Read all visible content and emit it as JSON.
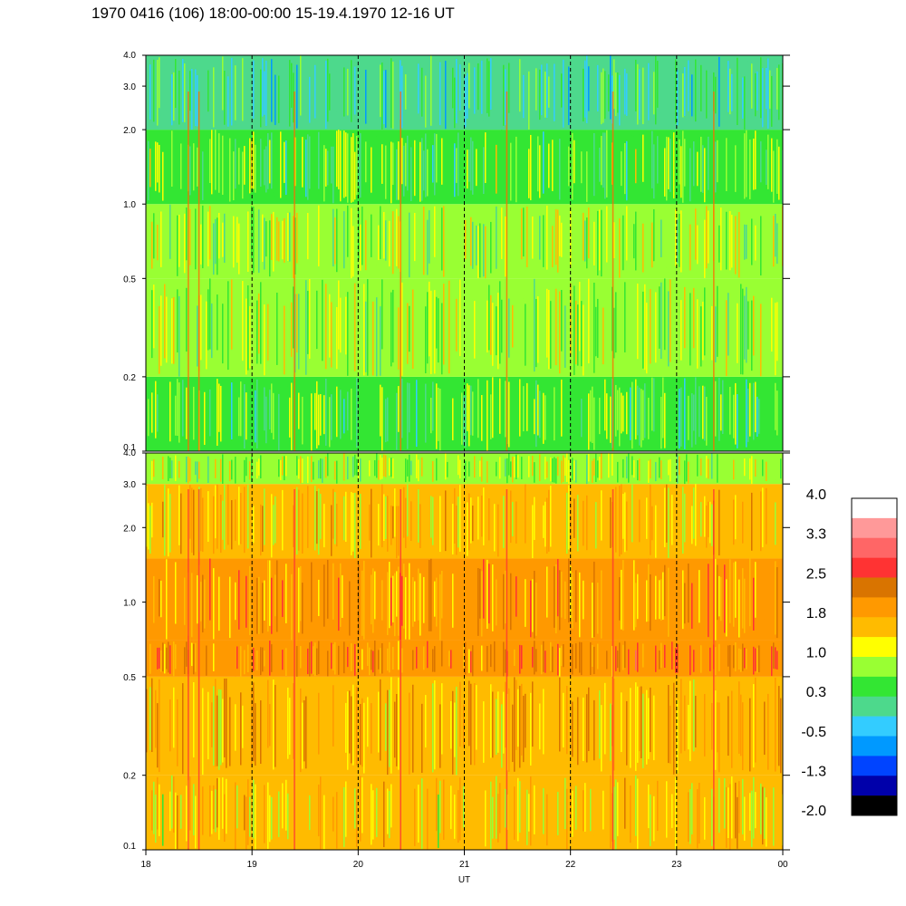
{
  "title": "1970 0416 (106) 18:00-00:00 15-19.4.1970  12-16 UT",
  "chart_data": {
    "type": "heatmap",
    "xlabel": "UT",
    "x_ticks": [
      "18",
      "19",
      "20",
      "21",
      "22",
      "23",
      "00"
    ],
    "x_range_hours": [
      18,
      24
    ],
    "dashed_gridlines_x": [
      19,
      20,
      21,
      22,
      23
    ],
    "y_scale": "log",
    "panels": [
      {
        "name": "upper",
        "y_ticks": [
          "4.0",
          "3.0",
          "2.0",
          "1.0",
          "0.5",
          "0.2",
          "0.1"
        ],
        "y_tick_values": [
          4.0,
          3.0,
          2.0,
          1.0,
          0.5,
          0.2,
          0.1
        ],
        "y_range": [
          0.1,
          4.0
        ],
        "level_bands": [
          {
            "y_from": 0.1,
            "y_to": 0.2,
            "level": 0.6
          },
          {
            "y_from": 0.2,
            "y_to": 0.5,
            "level": 0.9
          },
          {
            "y_from": 0.5,
            "y_to": 1.0,
            "level": 0.8
          },
          {
            "y_from": 1.0,
            "y_to": 2.0,
            "level": 0.6
          },
          {
            "y_from": 2.0,
            "y_to": 4.0,
            "level": 0.2
          }
        ]
      },
      {
        "name": "lower",
        "y_ticks": [
          "4.0",
          "3.0",
          "2.0",
          "1.0",
          "0.5",
          "0.2",
          "0.1"
        ],
        "y_tick_values": [
          4.0,
          3.0,
          2.0,
          1.0,
          0.5,
          0.2,
          0.1
        ],
        "y_range": [
          0.1,
          4.0
        ],
        "level_bands": [
          {
            "y_from": 0.1,
            "y_to": 0.2,
            "level": 1.4
          },
          {
            "y_from": 0.2,
            "y_to": 0.5,
            "level": 1.7
          },
          {
            "y_from": 0.5,
            "y_to": 0.7,
            "level": 2.1
          },
          {
            "y_from": 0.7,
            "y_to": 1.5,
            "level": 1.8
          },
          {
            "y_from": 1.5,
            "y_to": 3.0,
            "level": 1.5
          },
          {
            "y_from": 3.0,
            "y_to": 4.0,
            "level": 0.9
          }
        ]
      }
    ],
    "colorbar": {
      "labels": [
        "4.0",
        "3.3",
        "2.5",
        "1.8",
        "1.0",
        "0.3",
        "-0.5",
        "-1.3",
        "-2.0"
      ],
      "colors": [
        "#ffffff",
        "#ff9999",
        "#ff6666",
        "#ff3333",
        "#d97400",
        "#ff9900",
        "#ffbb00",
        "#ffff00",
        "#99ff33",
        "#33e633",
        "#4dd98c",
        "#33ccff",
        "#0099ff",
        "#0044ff",
        "#0000aa",
        "#000000"
      ]
    }
  }
}
